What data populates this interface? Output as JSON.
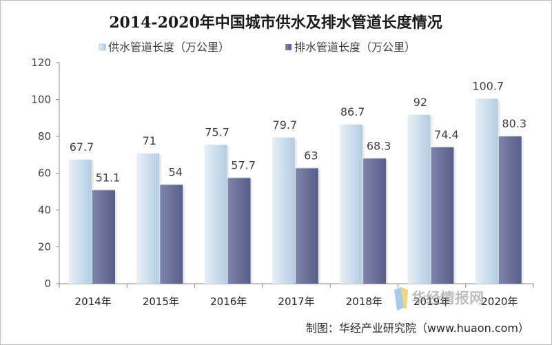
{
  "chart_data": {
    "type": "bar",
    "title": "2014-2020年中国城市供水及排水管道长度情况",
    "categories": [
      "2014年",
      "2015年",
      "2016年",
      "2017年",
      "2018年",
      "2019年",
      "2020年"
    ],
    "series": [
      {
        "name": "供水管道长度（万公里）",
        "values": [
          67.7,
          71,
          75.7,
          79.7,
          86.7,
          92,
          100.7
        ],
        "labels": [
          "67.7",
          "71",
          "75.7",
          "79.7",
          "86.7",
          "92",
          "100.7"
        ]
      },
      {
        "name": "排水管道长度（万公里）",
        "values": [
          51.1,
          54,
          57.7,
          63,
          68.3,
          74.4,
          80.3
        ],
        "labels": [
          "51.1",
          "54",
          "57.7",
          "63",
          "68.3",
          "74.4",
          "80.3"
        ]
      }
    ],
    "ylim": [
      0,
      120
    ],
    "yticks": [
      "0",
      "20",
      "40",
      "60",
      "80",
      "100",
      "120"
    ],
    "xlabel": "",
    "ylabel": "",
    "legend_position": "top",
    "grid": false
  },
  "colors": {
    "supply_light": "#e6f0f8",
    "supply_dark": "#b4cde2",
    "drain_light": "#7e85ab",
    "drain_dark": "#575f8a",
    "axis": "#8c8c8c"
  },
  "watermark": "华经情报网",
  "source": "制图：华经产业研究院（www.huaon.com）"
}
